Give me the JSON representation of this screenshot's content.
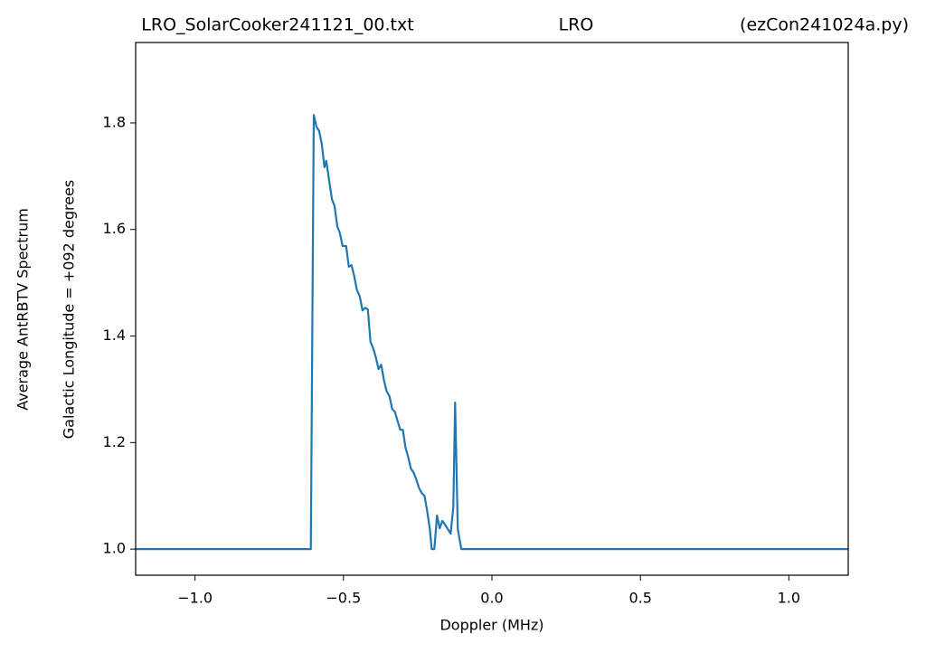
{
  "chart_data": {
    "type": "line",
    "title": [
      "LRO_SolarCooker241121_00.txt",
      "LRO",
      "(ezCon241024a.py)"
    ],
    "xlabel": "Doppler (MHz)",
    "ylabel": [
      "Average AntRBTV Spectrum",
      "Galactic Longitude = +092 degrees"
    ],
    "xlim": [
      -1.2,
      1.2
    ],
    "ylim": [
      0.951,
      1.951
    ],
    "xticks": [
      {
        "value": -1.0,
        "label": "−1.0"
      },
      {
        "value": -0.5,
        "label": "−0.5"
      },
      {
        "value": 0.0,
        "label": "0.0"
      },
      {
        "value": 0.5,
        "label": "0.5"
      },
      {
        "value": 1.0,
        "label": "1.0"
      }
    ],
    "yticks": [
      {
        "value": 1.0,
        "label": "1.0"
      },
      1.2,
      1.4,
      1.6,
      1.8
    ],
    "grid": false,
    "series": [
      {
        "name": "AntRBTV",
        "color": "#1f77b4",
        "x": [
          -1.2,
          -0.61,
          -0.6,
          -0.591,
          -0.582,
          -0.573,
          -0.564,
          -0.558,
          -0.548,
          -0.539,
          -0.53,
          -0.521,
          -0.512,
          -0.503,
          -0.491,
          -0.482,
          -0.473,
          -0.464,
          -0.455,
          -0.445,
          -0.436,
          -0.427,
          -0.418,
          -0.409,
          -0.4,
          -0.391,
          -0.382,
          -0.373,
          -0.364,
          -0.355,
          -0.345,
          -0.336,
          -0.327,
          -0.318,
          -0.309,
          -0.3,
          -0.291,
          -0.282,
          -0.273,
          -0.264,
          -0.255,
          -0.245,
          -0.236,
          -0.227,
          -0.218,
          -0.209,
          -0.203,
          -0.194,
          -0.185,
          -0.176,
          -0.167,
          -0.158,
          -0.148,
          -0.139,
          -0.13,
          -0.124,
          -0.115,
          -0.103,
          1.2
        ],
        "values": [
          1.0,
          1.0,
          1.815,
          1.793,
          1.785,
          1.76,
          1.717,
          1.729,
          1.691,
          1.657,
          1.644,
          1.606,
          1.593,
          1.569,
          1.569,
          1.53,
          1.533,
          1.513,
          1.487,
          1.474,
          1.448,
          1.453,
          1.45,
          1.389,
          1.377,
          1.36,
          1.338,
          1.346,
          1.318,
          1.297,
          1.287,
          1.263,
          1.258,
          1.241,
          1.224,
          1.224,
          1.19,
          1.173,
          1.151,
          1.144,
          1.131,
          1.114,
          1.105,
          1.1,
          1.071,
          1.037,
          1.0,
          1.0,
          1.063,
          1.039,
          1.053,
          1.046,
          1.037,
          1.029,
          1.08,
          1.275,
          1.037,
          1.0,
          1.0
        ]
      }
    ]
  }
}
